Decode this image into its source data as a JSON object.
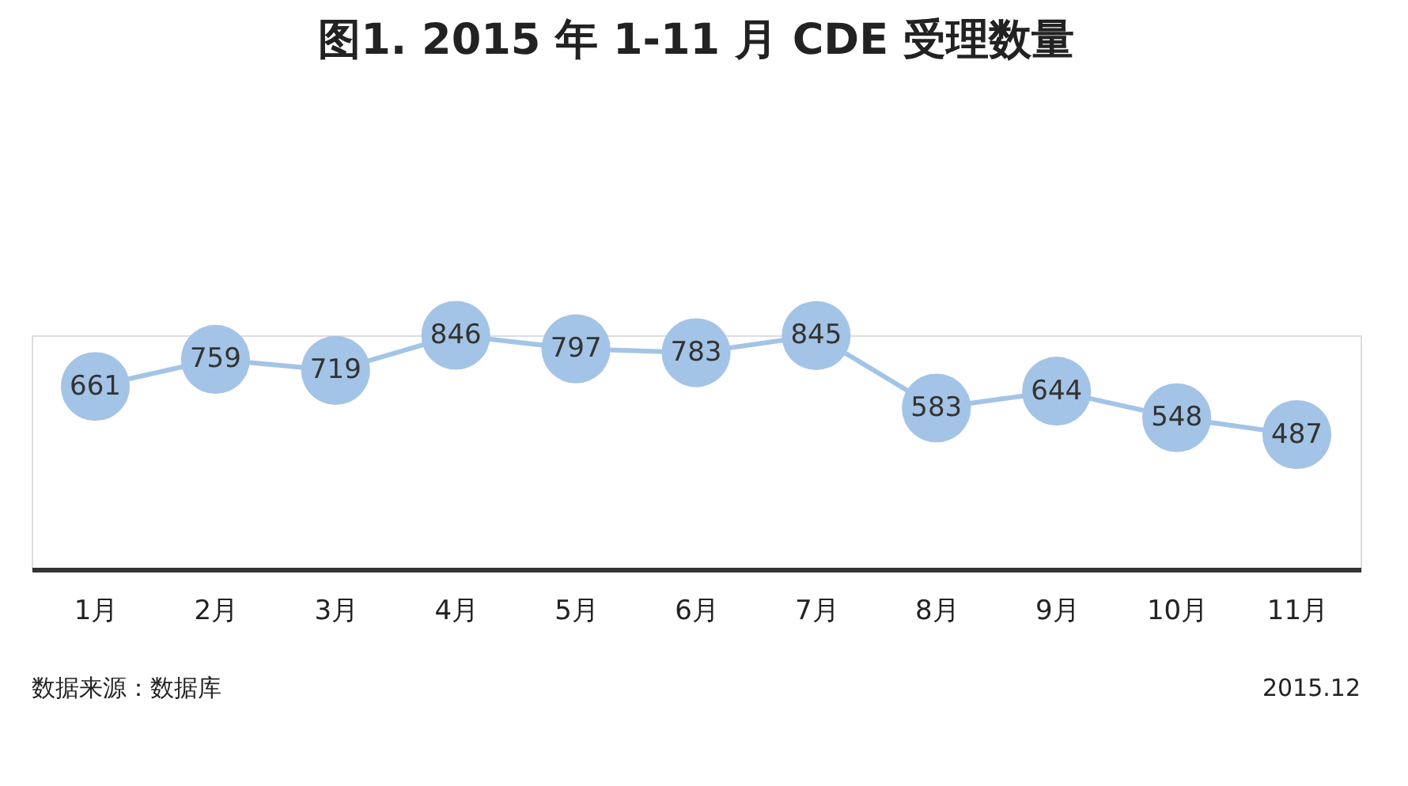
{
  "chart_data": {
    "type": "line",
    "title": "图1. 2015 年 1-11 月 CDE 受理数量",
    "categories": [
      "1月",
      "2月",
      "3月",
      "4月",
      "5月",
      "6月",
      "7月",
      "8月",
      "9月",
      "10月",
      "11月"
    ],
    "series": [
      {
        "color": "#a3c4e6",
        "values": [
          661,
          759,
          719,
          846,
          797,
          783,
          845,
          583,
          644,
          548,
          487
        ]
      }
    ],
    "data_labels": true,
    "marker": "circle",
    "annotations": [
      "数据来源：数据库",
      "2015.12"
    ]
  }
}
